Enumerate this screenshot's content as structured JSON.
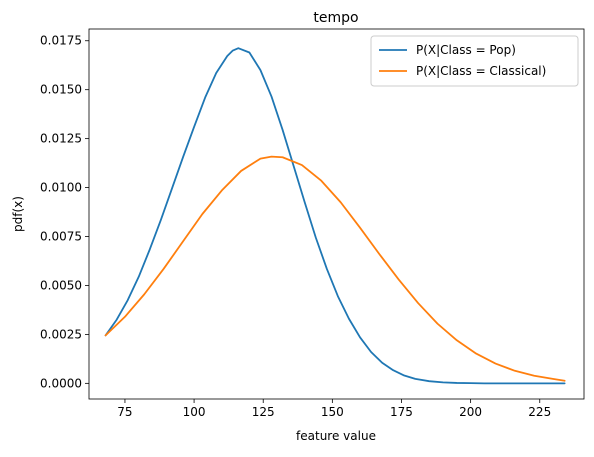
{
  "chart_data": {
    "type": "line",
    "title": "tempo",
    "xlabel": "feature value",
    "ylabel": "pdf(x)",
    "xlim": [
      62,
      241
    ],
    "ylim": [
      -0.0008,
      0.0181
    ],
    "grid": false,
    "legend_position": "top-right",
    "x_ticks": [
      {
        "value": 75,
        "label": "75"
      },
      {
        "value": 100,
        "label": "100"
      },
      {
        "value": 125,
        "label": "125"
      },
      {
        "value": 150,
        "label": "150"
      },
      {
        "value": 175,
        "label": "175"
      },
      {
        "value": 200,
        "label": "200"
      },
      {
        "value": 225,
        "label": "225"
      }
    ],
    "y_ticks": [
      {
        "value": 0.0,
        "label": "0.0000"
      },
      {
        "value": 0.0025,
        "label": "0.0025"
      },
      {
        "value": 0.005,
        "label": "0.0050"
      },
      {
        "value": 0.0075,
        "label": "0.0075"
      },
      {
        "value": 0.01,
        "label": "0.0100"
      },
      {
        "value": 0.0125,
        "label": "0.0125"
      },
      {
        "value": 0.015,
        "label": "0.0150"
      },
      {
        "value": 0.0175,
        "label": "0.0175"
      }
    ],
    "series": [
      {
        "name": "P(X|Class = Pop)",
        "color": "#1f77b4",
        "x": [
          68,
          72,
          76,
          80,
          84,
          88,
          92,
          96,
          100,
          104,
          108,
          112,
          114,
          116,
          120,
          124,
          128,
          132,
          136,
          140,
          144,
          148,
          152,
          156,
          160,
          164,
          168,
          172,
          176,
          180,
          185,
          190,
          195,
          200,
          205,
          210,
          215,
          220,
          225,
          230,
          234
        ],
        "y": [
          0.00245,
          0.00325,
          0.00425,
          0.00545,
          0.00685,
          0.00835,
          0.00995,
          0.01155,
          0.0131,
          0.0146,
          0.01585,
          0.01672,
          0.017,
          0.01712,
          0.0169,
          0.016,
          0.01465,
          0.01295,
          0.0111,
          0.00925,
          0.00745,
          0.00585,
          0.00445,
          0.0033,
          0.00235,
          0.0016,
          0.00105,
          0.00067,
          0.0004,
          0.00023,
          0.00011,
          5e-05,
          2e-05,
          1e-05,
          0.0,
          0.0,
          0.0,
          0.0,
          0.0,
          0.0,
          0.0
        ]
      },
      {
        "name": "P(X|Class = Classical)",
        "color": "#ff7f0e",
        "x": [
          68,
          75,
          82,
          89,
          96,
          103,
          110,
          117,
          124,
          128,
          132,
          139,
          146,
          153,
          160,
          167,
          174,
          181,
          188,
          195,
          202,
          209,
          216,
          223,
          230,
          234
        ],
        "y": [
          0.00245,
          0.0034,
          0.00455,
          0.00585,
          0.00725,
          0.00865,
          0.00985,
          0.01085,
          0.01148,
          0.01158,
          0.01155,
          0.01115,
          0.01035,
          0.00925,
          0.00795,
          0.0066,
          0.0053,
          0.0041,
          0.00305,
          0.0022,
          0.00152,
          0.00101,
          0.00064,
          0.00039,
          0.00022,
          0.00013
        ]
      }
    ]
  }
}
